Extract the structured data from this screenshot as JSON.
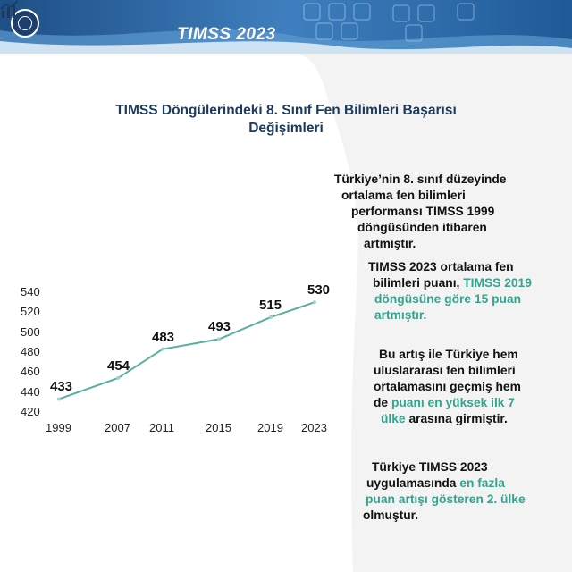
{
  "header": {
    "brand": "TIMSS 2023"
  },
  "colors": {
    "navy": "#1b3a5e",
    "teal": "#36a38f",
    "line": "#56b09c"
  },
  "chart_data": {
    "type": "line",
    "title": "TIMSS Döngülerindeki 8. Sınıf Fen Bilimleri Başarısı Değişimleri",
    "categories": [
      "1999",
      "2007",
      "2011",
      "2015",
      "2019",
      "2023"
    ],
    "values": [
      433,
      454,
      483,
      493,
      515,
      530
    ],
    "data_labels": [
      "433",
      "454",
      "483",
      "493",
      "515",
      "530"
    ],
    "ylim": [
      420,
      540
    ],
    "yticks": [
      "540",
      "520",
      "500",
      "480",
      "460",
      "440",
      "420"
    ],
    "grid": false
  },
  "notes": [
    {
      "parts": [
        {
          "t": "Türkiye’nin 8. sınıf düzeyinde",
          "h": false
        }
      ]
    },
    {
      "parts": [
        {
          "t": "ortalama fen bilimleri",
          "h": false
        }
      ]
    },
    {
      "parts": [
        {
          "t": "performansı TIMSS 1999",
          "h": false
        }
      ]
    },
    {
      "parts": [
        {
          "t": "döngüsünden itibaren",
          "h": false
        }
      ]
    },
    {
      "parts": [
        {
          "t": "artmıştır.",
          "h": false
        }
      ]
    },
    {
      "parts": [
        {
          "t": "TIMSS 2023 ortalama fen",
          "h": false
        }
      ]
    },
    {
      "parts": [
        {
          "t": "bilimleri puanı, ",
          "h": false
        },
        {
          "t": "TIMSS 2019",
          "h": true
        }
      ]
    },
    {
      "parts": [
        {
          "t": "döngüsüne göre 15 puan",
          "h": true
        }
      ]
    },
    {
      "parts": [
        {
          "t": "artmıştır.",
          "h": true
        }
      ]
    },
    {
      "parts": [
        {
          "t": "Bu artış ile Türkiye hem",
          "h": false
        }
      ]
    },
    {
      "parts": [
        {
          "t": "uluslararası fen bilimleri",
          "h": false
        }
      ]
    },
    {
      "parts": [
        {
          "t": "ortalamasını geçmiş hem",
          "h": false
        }
      ]
    },
    {
      "parts": [
        {
          "t": "de ",
          "h": false
        },
        {
          "t": "puanı en yüksek ilk 7",
          "h": true
        }
      ]
    },
    {
      "parts": [
        {
          "t": "ülke",
          "h": true
        },
        {
          "t": " arasına girmiştir.",
          "h": false
        }
      ]
    },
    {
      "parts": [
        {
          "t": "Türkiye TIMSS 2023",
          "h": false
        }
      ]
    },
    {
      "parts": [
        {
          "t": "uygulamasında ",
          "h": false
        },
        {
          "t": "en fazla",
          "h": true
        }
      ]
    },
    {
      "parts": [
        {
          "t": "puan artışı gösteren 2. ülke",
          "h": true
        }
      ]
    },
    {
      "parts": [
        {
          "t": "olmuştur.",
          "h": false
        }
      ]
    }
  ]
}
